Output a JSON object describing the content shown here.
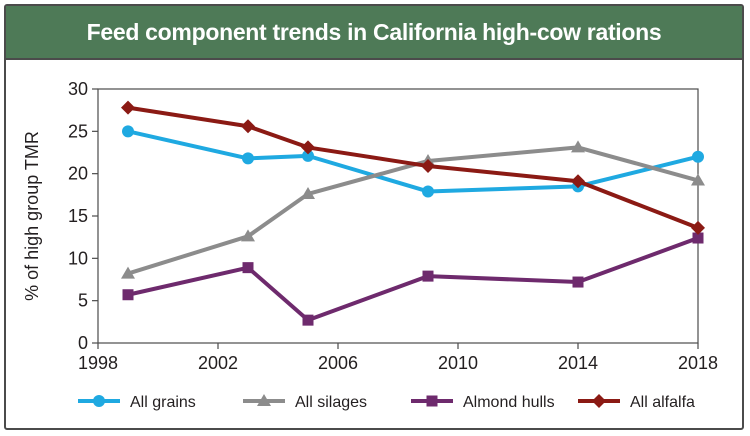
{
  "chart_data": {
    "type": "line",
    "title": "Feed component trends in California high-cow rations",
    "xlabel": "",
    "ylabel": "% of high group TMR",
    "xlim": [
      1998,
      2018
    ],
    "ylim": [
      0,
      30
    ],
    "xticks": [
      1998,
      2002,
      2006,
      2010,
      2014,
      2018
    ],
    "yticks": [
      0,
      5,
      10,
      15,
      20,
      25,
      30
    ],
    "grid": false,
    "legend_position": "bottom",
    "series": [
      {
        "name": "All grains",
        "color": "#1fa9e1",
        "marker": "circle",
        "x": [
          1999,
          2003,
          2005,
          2009,
          2014,
          2018
        ],
        "y": [
          25,
          21.8,
          22.1,
          17.9,
          18.5,
          22
        ]
      },
      {
        "name": "All silages",
        "color": "#8c8c8c",
        "marker": "triangle",
        "x": [
          1999,
          2003,
          2005,
          2009,
          2014,
          2018
        ],
        "y": [
          8.2,
          12.6,
          17.6,
          21.5,
          23.1,
          19.2
        ]
      },
      {
        "name": "Almond hulls",
        "color": "#6e2a6d",
        "marker": "square",
        "x": [
          1999,
          2003,
          2005,
          2009,
          2014,
          2018
        ],
        "y": [
          5.7,
          8.9,
          2.7,
          7.9,
          7.2,
          12.4
        ]
      },
      {
        "name": "All alfalfa",
        "color": "#8b1a14",
        "marker": "diamond",
        "x": [
          1999,
          2003,
          2005,
          2009,
          2014,
          2018
        ],
        "y": [
          27.8,
          25.6,
          23.1,
          20.9,
          19.1,
          13.6
        ]
      }
    ]
  }
}
